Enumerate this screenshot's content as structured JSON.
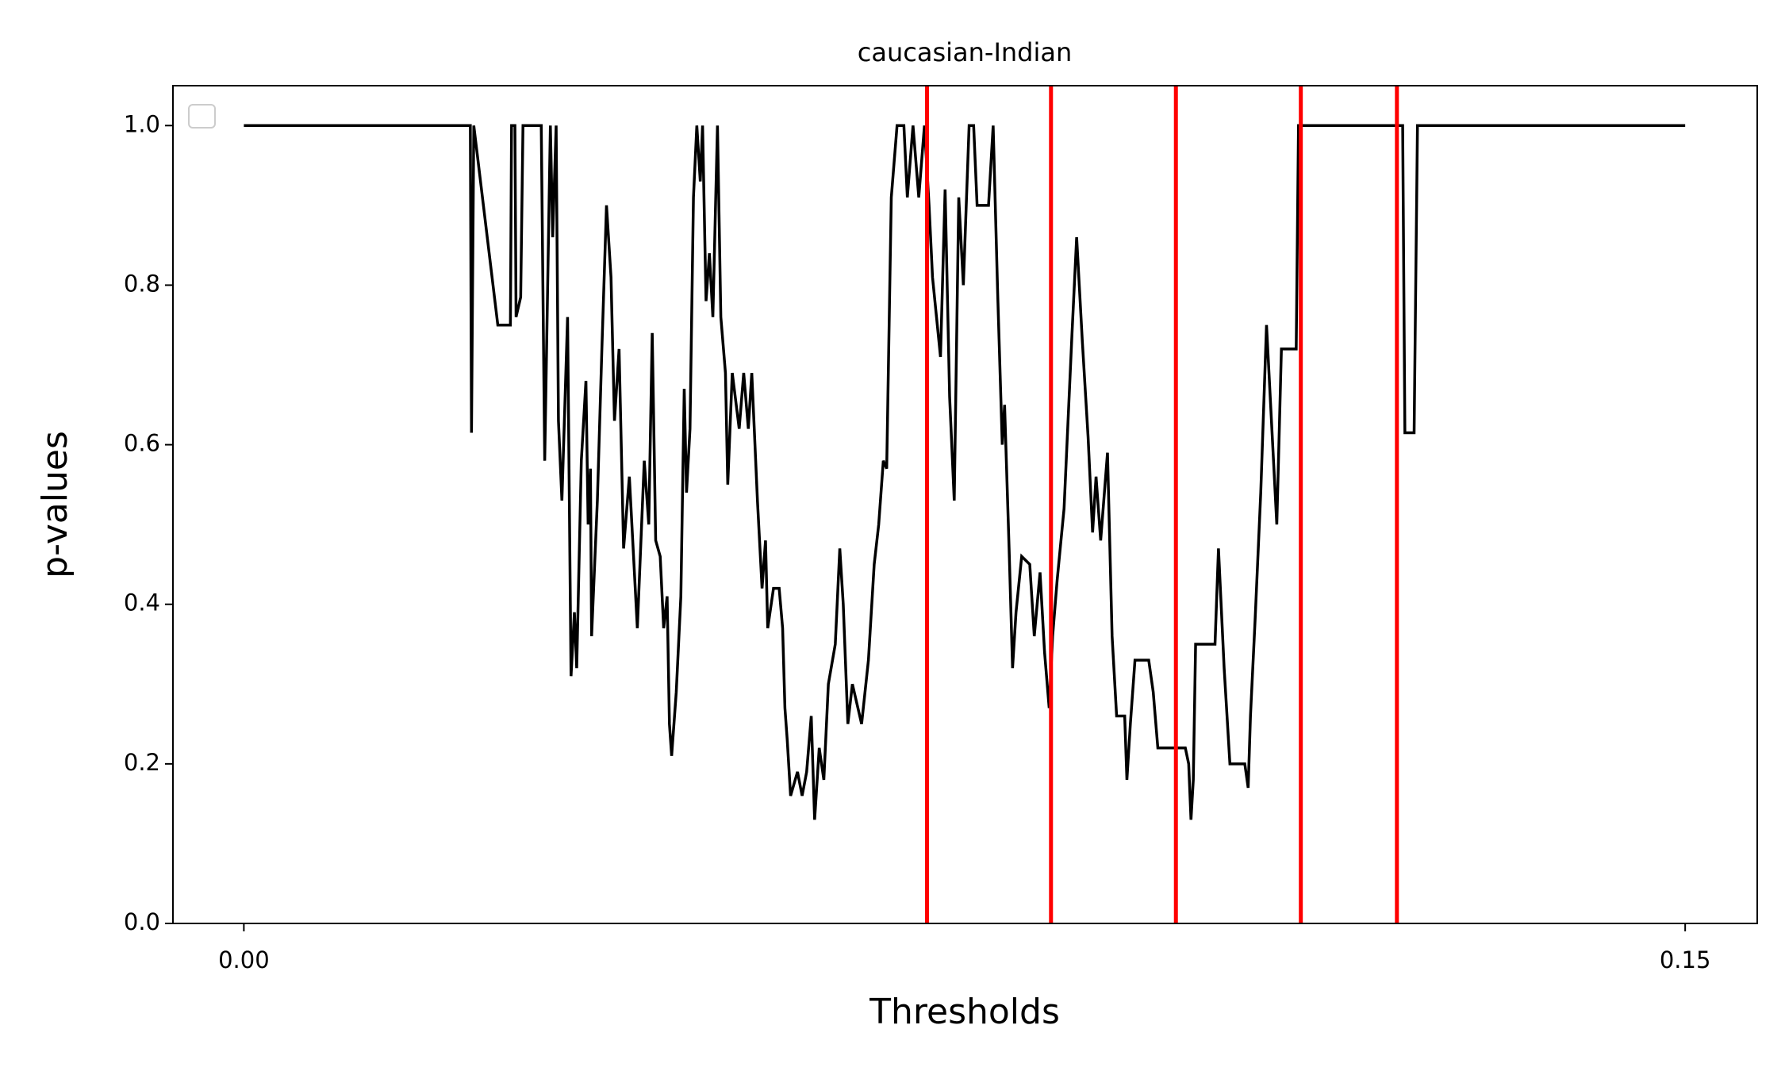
{
  "chart_data": {
    "type": "line",
    "title": "caucasian-Indian",
    "xlabel": "Thresholds",
    "ylabel": "p-values",
    "xlim": [
      -0.00738,
      0.1575
    ],
    "ylim": [
      0,
      1.05
    ],
    "xticks": [
      {
        "value": 0,
        "label": "0.00"
      },
      {
        "value": 0.15,
        "label": "0.15"
      }
    ],
    "yticks": [
      {
        "value": 0,
        "label": "0.0"
      },
      {
        "value": 0.2,
        "label": "0.2"
      },
      {
        "value": 0.4,
        "label": "0.4"
      },
      {
        "value": 0.6,
        "label": "0.6"
      },
      {
        "value": 0.8,
        "label": "0.8"
      },
      {
        "value": 1.0,
        "label": "1.0"
      }
    ],
    "vlines": [
      0.0711,
      0.084,
      0.097,
      0.11,
      0.12
    ],
    "vline_color": "#ff0000",
    "color": "#000000",
    "x": [
      0,
      0.02357,
      0.02369,
      0.02393,
      0.02643,
      0.02774,
      0.02786,
      0.02821,
      0.02833,
      0.02881,
      0.02905,
      0.03095,
      0.03131,
      0.0319,
      0.03214,
      0.0325,
      0.03274,
      0.0331,
      0.03369,
      0.03405,
      0.0344,
      0.03464,
      0.03512,
      0.0356,
      0.03583,
      0.03607,
      0.03619,
      0.03679,
      0.03726,
      0.03774,
      0.03821,
      0.03857,
      0.03905,
      0.03952,
      0.04012,
      0.04095,
      0.04167,
      0.04214,
      0.0425,
      0.04286,
      0.04333,
      0.04369,
      0.04405,
      0.04429,
      0.04452,
      0.045,
      0.04548,
      0.04583,
      0.04607,
      0.04643,
      0.04679,
      0.04714,
      0.0475,
      0.04774,
      0.0481,
      0.04845,
      0.04881,
      0.04929,
      0.04964,
      0.05012,
      0.05036,
      0.05083,
      0.05155,
      0.05202,
      0.0525,
      0.05286,
      0.05345,
      0.05393,
      0.05429,
      0.05452,
      0.05512,
      0.05571,
      0.05607,
      0.05631,
      0.05655,
      0.0569,
      0.05762,
      0.0581,
      0.05857,
      0.05905,
      0.0594,
      0.05988,
      0.06036,
      0.06083,
      0.06155,
      0.06202,
      0.06238,
      0.06286,
      0.06333,
      0.06429,
      0.065,
      0.0656,
      0.06607,
      0.06655,
      0.0669,
      0.06738,
      0.06798,
      0.06869,
      0.06905,
      0.06964,
      0.07024,
      0.07083,
      0.07131,
      0.07167,
      0.0725,
      0.07298,
      0.07345,
      0.07393,
      0.0744,
      0.07488,
      0.07548,
      0.07595,
      0.07631,
      0.0775,
      0.07798,
      0.07845,
      0.07893,
      0.07917,
      0.07964,
      0.08,
      0.08036,
      0.08095,
      0.08179,
      0.08226,
      0.08286,
      0.08333,
      0.08381,
      0.08417,
      0.08464,
      0.08536,
      0.08619,
      0.08667,
      0.08726,
      0.08786,
      0.08833,
      0.08869,
      0.08917,
      0.08988,
      0.09036,
      0.09083,
      0.09167,
      0.0919,
      0.09226,
      0.09274,
      0.09417,
      0.09464,
      0.09512,
      0.09798,
      0.09833,
      0.09857,
      0.09881,
      0.09905,
      0.10107,
      0.10143,
      0.10202,
      0.10262,
      0.10417,
      0.10452,
      0.10476,
      0.10524,
      0.10583,
      0.10643,
      0.1075,
      0.10798,
      0.10952,
      0.10976,
      0.1206,
      0.12083,
      0.12179,
      0.12214,
      0.15
    ],
    "values": [
      1.0,
      1.0,
      0.615,
      1.0,
      0.75,
      0.75,
      1.0,
      1.0,
      0.76,
      0.785,
      1.0,
      1.0,
      0.58,
      1.0,
      0.86,
      1.0,
      0.63,
      0.53,
      0.76,
      0.31,
      0.39,
      0.32,
      0.58,
      0.68,
      0.5,
      0.57,
      0.36,
      0.53,
      0.72,
      0.9,
      0.81,
      0.63,
      0.72,
      0.47,
      0.56,
      0.37,
      0.58,
      0.5,
      0.74,
      0.48,
      0.46,
      0.37,
      0.41,
      0.25,
      0.21,
      0.29,
      0.41,
      0.67,
      0.54,
      0.62,
      0.91,
      1.0,
      0.93,
      1.0,
      0.78,
      0.84,
      0.76,
      1.0,
      0.76,
      0.69,
      0.55,
      0.69,
      0.62,
      0.69,
      0.62,
      0.69,
      0.53,
      0.42,
      0.48,
      0.37,
      0.42,
      0.42,
      0.37,
      0.27,
      0.23,
      0.16,
      0.19,
      0.16,
      0.19,
      0.26,
      0.13,
      0.22,
      0.18,
      0.3,
      0.35,
      0.47,
      0.4,
      0.25,
      0.3,
      0.25,
      0.33,
      0.45,
      0.5,
      0.58,
      0.57,
      0.91,
      1.0,
      1.0,
      0.91,
      1.0,
      0.91,
      1.0,
      0.9,
      0.81,
      0.71,
      0.92,
      0.66,
      0.53,
      0.91,
      0.8,
      1.0,
      1.0,
      0.9,
      0.9,
      1.0,
      0.79,
      0.6,
      0.65,
      0.47,
      0.32,
      0.39,
      0.46,
      0.45,
      0.36,
      0.44,
      0.34,
      0.27,
      0.36,
      0.43,
      0.52,
      0.74,
      0.86,
      0.73,
      0.61,
      0.49,
      0.56,
      0.48,
      0.59,
      0.36,
      0.26,
      0.26,
      0.18,
      0.25,
      0.33,
      0.33,
      0.29,
      0.22,
      0.22,
      0.2,
      0.13,
      0.18,
      0.35,
      0.35,
      0.47,
      0.32,
      0.2,
      0.2,
      0.17,
      0.26,
      0.38,
      0.54,
      0.75,
      0.5,
      0.72,
      0.72,
      1.0,
      1.0,
      0.615,
      0.615,
      1.0,
      1.0
    ]
  }
}
